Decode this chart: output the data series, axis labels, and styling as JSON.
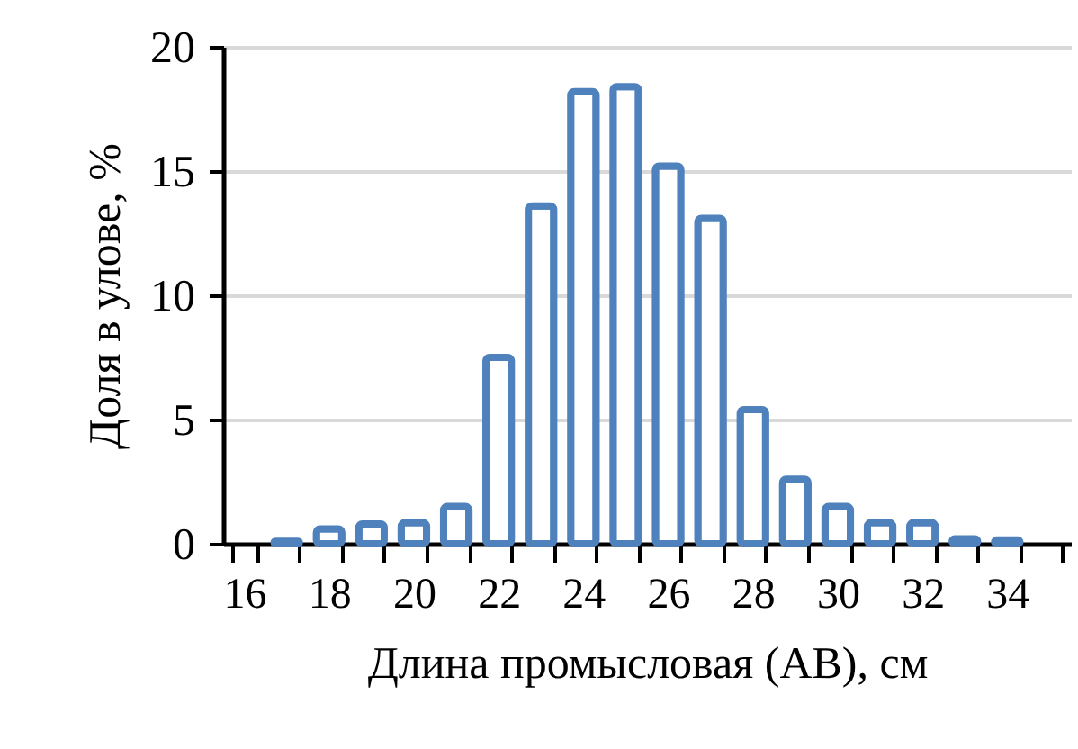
{
  "chart_data": {
    "type": "bar",
    "xlabel": "Длина промысловая (АВ), см",
    "ylabel": "Доля в улове, %",
    "categories": [
      "16",
      null,
      "18",
      null,
      "20",
      null,
      "22",
      null,
      "24",
      null,
      "26",
      null,
      "28",
      null,
      "30",
      null,
      "32",
      null,
      "34",
      null
    ],
    "values": [
      null,
      0.1,
      0.6,
      0.8,
      0.85,
      1.5,
      7.5,
      13.6,
      18.2,
      18.4,
      15.2,
      13.1,
      5.4,
      2.6,
      1.5,
      0.85,
      0.85,
      0.2,
      0.15,
      null
    ],
    "color": "#4f81bd",
    "ylim": [
      0,
      20
    ],
    "yticks": [
      0,
      5,
      10,
      15,
      20
    ],
    "grid": "y"
  }
}
